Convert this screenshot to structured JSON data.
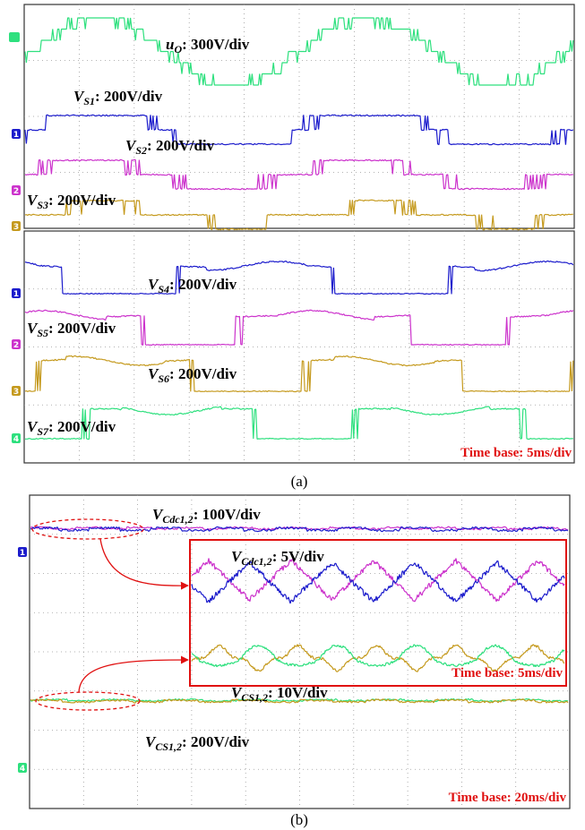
{
  "panel_a": {
    "top_screen": {
      "traces": [
        {
          "symbol": "u",
          "subscript": "O",
          "scale": ": 300V/div"
        },
        {
          "symbol": "V",
          "subscript": "S1",
          "scale": ": 200V/div"
        },
        {
          "symbol": "V",
          "subscript": "S2",
          "scale": ": 200V/div"
        },
        {
          "symbol": "V",
          "subscript": "S3",
          "scale": ": 200V/div"
        }
      ],
      "channel_markers": [
        "1",
        "2",
        "3"
      ]
    },
    "bottom_screen": {
      "traces": [
        {
          "symbol": "V",
          "subscript": "S4",
          "scale": ": 200V/div"
        },
        {
          "symbol": "V",
          "subscript": "S5",
          "scale": ": 200V/div"
        },
        {
          "symbol": "V",
          "subscript": "S6",
          "scale": ": 200V/div"
        },
        {
          "symbol": "V",
          "subscript": "S7",
          "scale": ": 200V/div"
        }
      ],
      "channel_markers": [
        "1",
        "2",
        "3",
        "4"
      ],
      "time_base": "Time base: 5ms/div"
    },
    "caption": "(a)"
  },
  "panel_b": {
    "traces": [
      {
        "symbol": "V",
        "subscript": "Cdc1,2",
        "scale": ": 100V/div"
      },
      {
        "symbol": "V",
        "subscript": "CS1,2",
        "scale": ": 200V/div"
      }
    ],
    "inset": {
      "traces": [
        {
          "symbol": "V",
          "subscript": "Cdc1,2",
          "scale": ": 5V/div"
        },
        {
          "symbol": "V",
          "subscript": "CS1,2",
          "scale": ": 10V/div"
        }
      ],
      "time_base": "Time base: 5ms/div"
    },
    "channel_markers": [
      "1",
      "4"
    ],
    "time_base": "Time base: 20ms/div",
    "caption": "(b)"
  }
}
